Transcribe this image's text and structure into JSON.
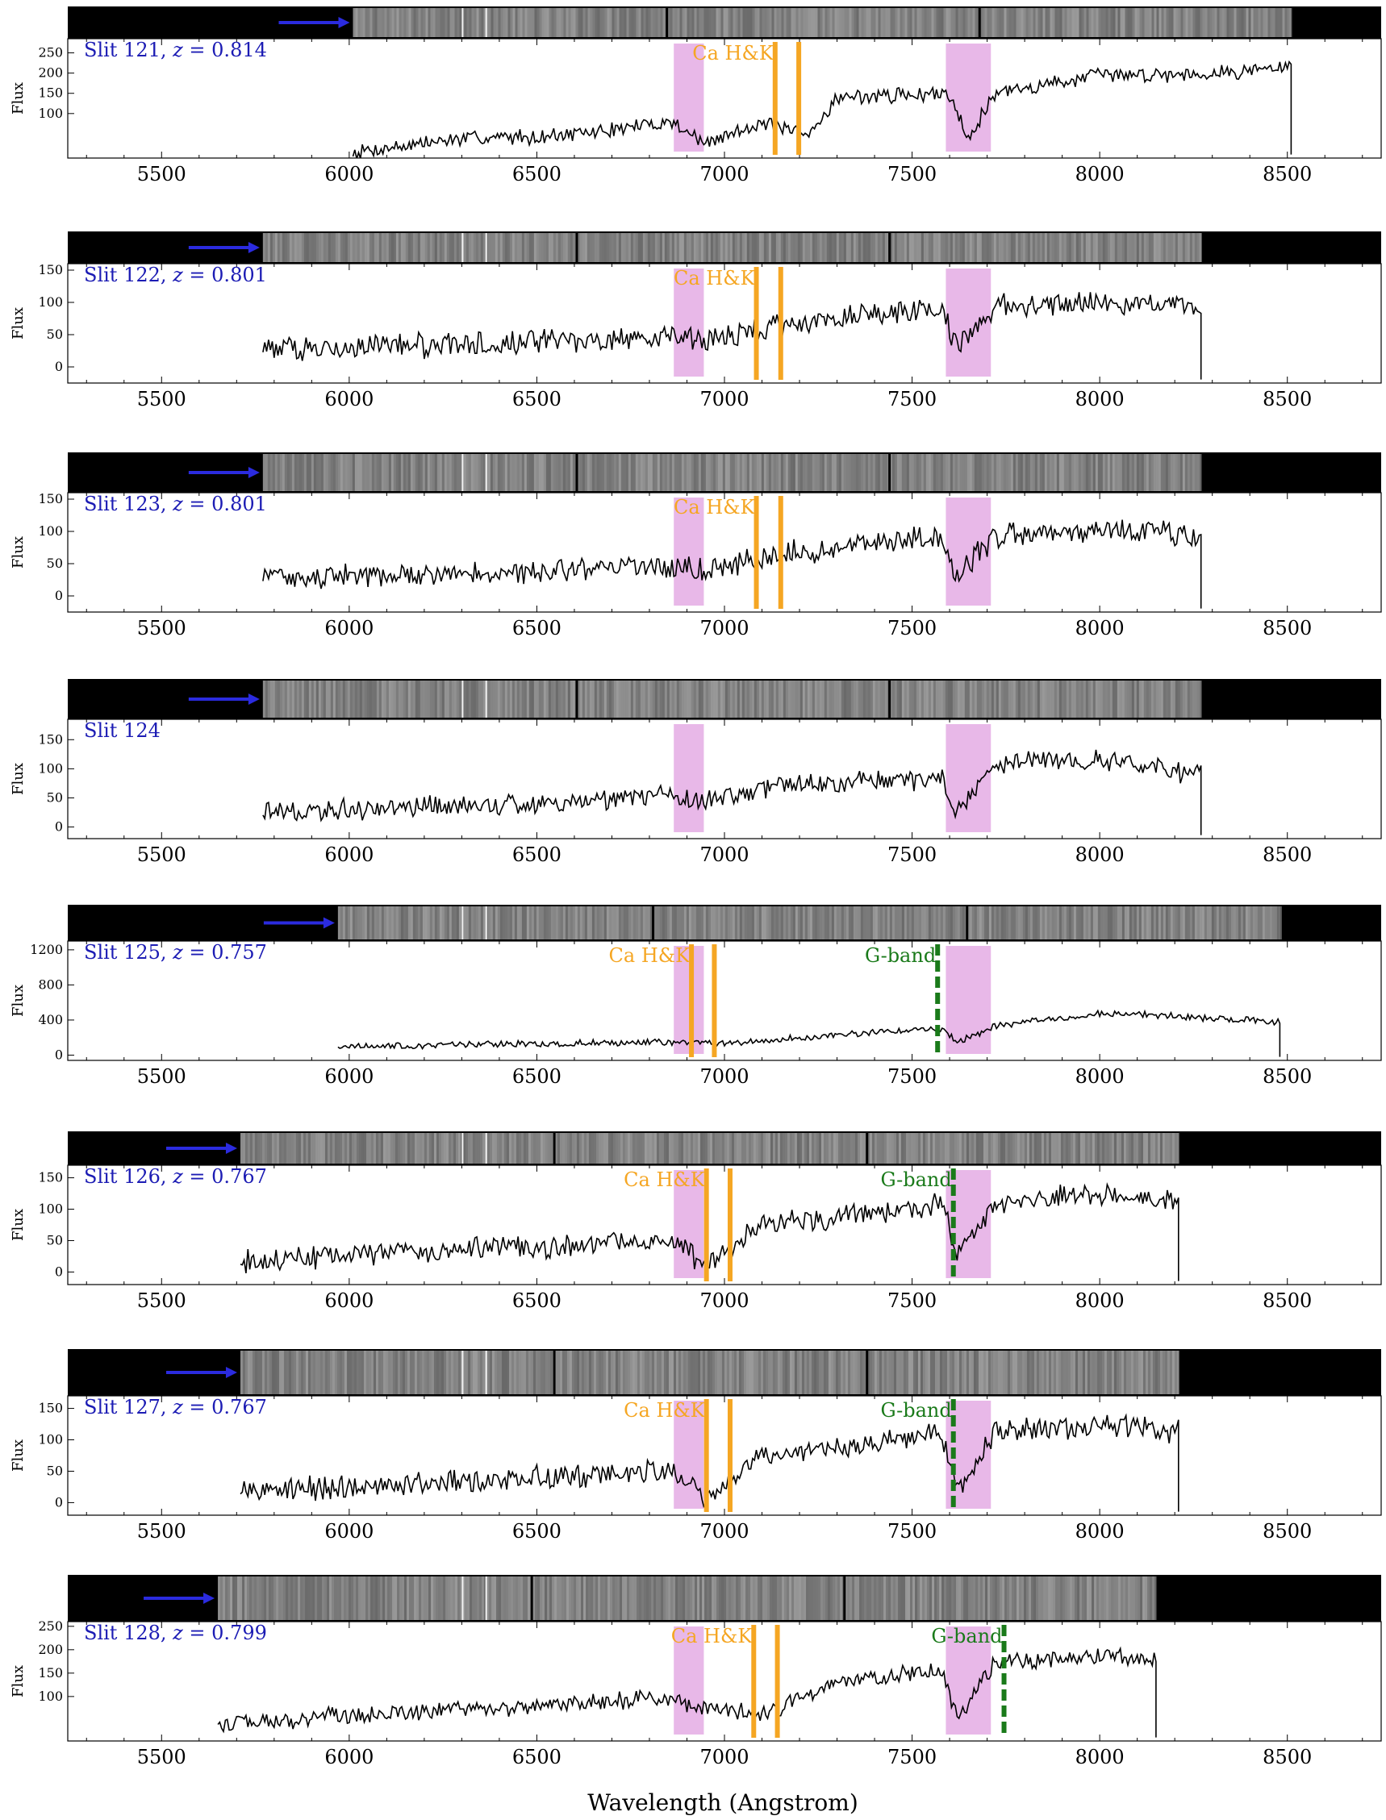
{
  "figure": {
    "xlabel": "Wavelength (Angstrom)",
    "colors": {
      "spectrum": "#000000",
      "label": "#1c1cb4",
      "cahk": "#f5a623",
      "gband": "#1a7a1a",
      "telluric": "#e8b8e8",
      "arrow": "#2b2bdf"
    }
  },
  "chart_data": [
    {
      "type": "line",
      "label": "Slit 121",
      "z": "0.814",
      "ylabel": "Flux",
      "xlim": [
        5250,
        8750
      ],
      "ylim": [
        -10,
        285
      ],
      "yticks": [
        100,
        150,
        200,
        250
      ],
      "xticks": [
        5500,
        6000,
        6500,
        7000,
        7500,
        8000,
        8500
      ],
      "x_range": [
        6010,
        8510
      ],
      "flux_profile": [
        [
          6010,
          5
        ],
        [
          6300,
          38
        ],
        [
          6600,
          48
        ],
        [
          6860,
          80
        ],
        [
          6950,
          25
        ],
        [
          7100,
          80
        ],
        [
          7220,
          40
        ],
        [
          7300,
          140
        ],
        [
          7600,
          150
        ],
        [
          7650,
          40
        ],
        [
          7720,
          150
        ],
        [
          8000,
          195
        ],
        [
          8300,
          200
        ],
        [
          8500,
          215
        ]
      ],
      "noise": 22,
      "telluric_bands": [
        [
          6865,
          6945
        ],
        [
          7590,
          7710
        ]
      ],
      "cahk_lines": [
        7135,
        7198
      ],
      "gband_line": null,
      "line_label_cahk": "Ca H&K",
      "line_label_gband": "",
      "slit_image_x": [
        6010,
        8510
      ]
    },
    {
      "type": "line",
      "label": "Slit 122",
      "z": "0.801",
      "ylabel": "Flux",
      "xlim": [
        5250,
        8750
      ],
      "ylim": [
        -25,
        160
      ],
      "yticks": [
        0,
        50,
        100,
        150
      ],
      "xticks": [
        5500,
        6000,
        6500,
        7000,
        7500,
        8000,
        8500
      ],
      "x_range": [
        5770,
        8270
      ],
      "flux_profile": [
        [
          5770,
          28
        ],
        [
          6100,
          32
        ],
        [
          6500,
          38
        ],
        [
          6860,
          45
        ],
        [
          6950,
          40
        ],
        [
          7100,
          60
        ],
        [
          7400,
          85
        ],
        [
          7580,
          90
        ],
        [
          7620,
          30
        ],
        [
          7720,
          95
        ],
        [
          8000,
          100
        ],
        [
          8270,
          95
        ]
      ],
      "noise": 22,
      "telluric_bands": [
        [
          6865,
          6945
        ],
        [
          7590,
          7710
        ]
      ],
      "cahk_lines": [
        7085,
        7150
      ],
      "gband_line": null,
      "line_label_cahk": "Ca H&K",
      "line_label_gband": "",
      "slit_image_x": [
        5770,
        8270
      ]
    },
    {
      "type": "line",
      "label": "Slit 123",
      "z": "0.801",
      "ylabel": "Flux",
      "xlim": [
        5250,
        8750
      ],
      "ylim": [
        -25,
        160
      ],
      "yticks": [
        0,
        50,
        100,
        150
      ],
      "xticks": [
        5500,
        6000,
        6500,
        7000,
        7500,
        8000,
        8500
      ],
      "x_range": [
        5770,
        8270
      ],
      "flux_profile": [
        [
          5770,
          28
        ],
        [
          6100,
          32
        ],
        [
          6500,
          38
        ],
        [
          6860,
          45
        ],
        [
          6950,
          40
        ],
        [
          7100,
          60
        ],
        [
          7400,
          85
        ],
        [
          7580,
          90
        ],
        [
          7620,
          30
        ],
        [
          7720,
          95
        ],
        [
          8000,
          100
        ],
        [
          8270,
          95
        ]
      ],
      "noise": 22,
      "telluric_bands": [
        [
          6865,
          6945
        ],
        [
          7590,
          7710
        ]
      ],
      "cahk_lines": [
        7085,
        7150
      ],
      "gband_line": null,
      "line_label_cahk": "Ca H&K",
      "line_label_gband": "",
      "slit_image_x": [
        5770,
        8270
      ]
    },
    {
      "type": "line",
      "label": "Slit 124",
      "z": "",
      "ylabel": "Flux",
      "xlim": [
        5250,
        8750
      ],
      "ylim": [
        -20,
        185
      ],
      "yticks": [
        0,
        50,
        100,
        150
      ],
      "xticks": [
        5500,
        6000,
        6500,
        7000,
        7500,
        8000,
        8500
      ],
      "x_range": [
        5770,
        8270
      ],
      "flux_profile": [
        [
          5770,
          25
        ],
        [
          6200,
          35
        ],
        [
          6600,
          40
        ],
        [
          6860,
          55
        ],
        [
          6950,
          45
        ],
        [
          7200,
          75
        ],
        [
          7580,
          80
        ],
        [
          7620,
          20
        ],
        [
          7720,
          110
        ],
        [
          8000,
          115
        ],
        [
          8270,
          90
        ]
      ],
      "noise": 22,
      "telluric_bands": [
        [
          6865,
          6945
        ],
        [
          7590,
          7710
        ]
      ],
      "cahk_lines": [],
      "gband_line": null,
      "line_label_cahk": "",
      "line_label_gband": "",
      "slit_image_x": [
        5770,
        8270
      ]
    },
    {
      "type": "line",
      "label": "Slit 125",
      "z": "0.757",
      "ylabel": "Flux",
      "xlim": [
        5250,
        8750
      ],
      "ylim": [
        -60,
        1300
      ],
      "yticks": [
        0,
        400,
        800,
        1200
      ],
      "xticks": [
        5500,
        6000,
        6500,
        7000,
        7500,
        8000,
        8500
      ],
      "x_range": [
        5970,
        8480
      ],
      "flux_profile": [
        [
          5970,
          100
        ],
        [
          6500,
          130
        ],
        [
          6900,
          150
        ],
        [
          7000,
          130
        ],
        [
          7300,
          230
        ],
        [
          7580,
          300
        ],
        [
          7620,
          150
        ],
        [
          7720,
          330
        ],
        [
          8000,
          480
        ],
        [
          8300,
          420
        ],
        [
          8480,
          380
        ]
      ],
      "noise": 45,
      "telluric_bands": [
        [
          6865,
          6945
        ],
        [
          7590,
          7710
        ]
      ],
      "cahk_lines": [
        6912,
        6973
      ],
      "gband_line": 7568,
      "line_label_cahk": "Ca H&K",
      "line_label_gband": "G-band",
      "slit_image_x": [
        5970,
        8480
      ]
    },
    {
      "type": "line",
      "label": "Slit 126",
      "z": "0.767",
      "ylabel": "Flux",
      "xlim": [
        5250,
        8750
      ],
      "ylim": [
        -20,
        170
      ],
      "yticks": [
        0,
        50,
        100,
        150
      ],
      "xticks": [
        5500,
        6000,
        6500,
        7000,
        7500,
        8000,
        8500
      ],
      "x_range": [
        5710,
        8210
      ],
      "flux_profile": [
        [
          5710,
          15
        ],
        [
          6100,
          30
        ],
        [
          6500,
          40
        ],
        [
          6860,
          50
        ],
        [
          6950,
          10
        ],
        [
          7100,
          75
        ],
        [
          7500,
          100
        ],
        [
          7580,
          110
        ],
        [
          7620,
          20
        ],
        [
          7720,
          110
        ],
        [
          8000,
          125
        ],
        [
          8210,
          115
        ]
      ],
      "noise": 22,
      "telluric_bands": [
        [
          6865,
          6945
        ],
        [
          7590,
          7710
        ]
      ],
      "cahk_lines": [
        6952,
        7015
      ],
      "gband_line": 7610,
      "line_label_cahk": "Ca H&K",
      "line_label_gband": "G-band",
      "slit_image_x": [
        5710,
        8210
      ]
    },
    {
      "type": "line",
      "label": "Slit 127",
      "z": "0.767",
      "ylabel": "Flux",
      "xlim": [
        5250,
        8750
      ],
      "ylim": [
        -20,
        170
      ],
      "yticks": [
        0,
        50,
        100,
        150
      ],
      "xticks": [
        5500,
        6000,
        6500,
        7000,
        7500,
        8000,
        8500
      ],
      "x_range": [
        5710,
        8210
      ],
      "flux_profile": [
        [
          5710,
          15
        ],
        [
          6100,
          30
        ],
        [
          6500,
          40
        ],
        [
          6860,
          50
        ],
        [
          6950,
          10
        ],
        [
          7100,
          75
        ],
        [
          7500,
          100
        ],
        [
          7580,
          110
        ],
        [
          7620,
          20
        ],
        [
          7720,
          110
        ],
        [
          8000,
          125
        ],
        [
          8210,
          115
        ]
      ],
      "noise": 22,
      "telluric_bands": [
        [
          6865,
          6945
        ],
        [
          7590,
          7710
        ]
      ],
      "cahk_lines": [
        6952,
        7015
      ],
      "gband_line": 7610,
      "line_label_cahk": "Ca H&K",
      "line_label_gband": "G-band",
      "slit_image_x": [
        5710,
        8210
      ]
    },
    {
      "type": "line",
      "label": "Slit 128",
      "z": "0.799",
      "ylabel": "Flux",
      "xlim": [
        5250,
        8750
      ],
      "ylim": [
        5,
        260
      ],
      "yticks": [
        100,
        150,
        200,
        250
      ],
      "xticks": [
        5500,
        6000,
        6500,
        7000,
        7500,
        8000,
        8500
      ],
      "x_range": [
        5650,
        8150
      ],
      "flux_profile": [
        [
          5650,
          40
        ],
        [
          6000,
          60
        ],
        [
          6400,
          75
        ],
        [
          6800,
          95
        ],
        [
          6950,
          80
        ],
        [
          7100,
          60
        ],
        [
          7300,
          130
        ],
        [
          7580,
          155
        ],
        [
          7620,
          55
        ],
        [
          7720,
          170
        ],
        [
          8000,
          185
        ],
        [
          8150,
          180
        ]
      ],
      "noise": 22,
      "telluric_bands": [
        [
          6865,
          6945
        ],
        [
          7590,
          7710
        ]
      ],
      "cahk_lines": [
        7078,
        7141
      ],
      "gband_line": 7745,
      "line_label_cahk": "Ca H&K",
      "line_label_gband": "G-band",
      "slit_image_x": [
        5650,
        8150
      ]
    }
  ]
}
